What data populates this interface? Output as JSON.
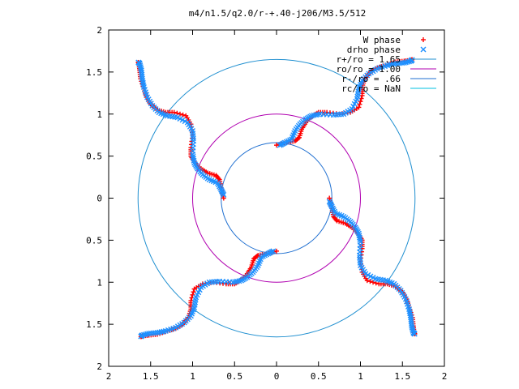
{
  "chart_data": {
    "type": "scatter",
    "title": "m4/n1.5/q2.0/r-+.40-j206/M3.5/512",
    "xlabel": "",
    "ylabel": "",
    "xlim": [
      -2,
      2
    ],
    "ylim": [
      -2,
      2
    ],
    "x_tick_values": [
      -2,
      -1.5,
      -1,
      -0.5,
      0,
      0.5,
      1,
      1.5,
      2
    ],
    "x_tick_labels": [
      "2",
      "1.5",
      "1",
      "0.5",
      "0",
      "0.5",
      "1",
      "1.5",
      "2"
    ],
    "y_tick_values": [
      2,
      1.5,
      1,
      0.5,
      0,
      -0.5,
      -1,
      -1.5,
      -2
    ],
    "y_tick_labels": [
      "2",
      "1.5",
      "1",
      "0.5",
      "0",
      "0.5",
      "1",
      "1.5",
      "2"
    ],
    "grid": false,
    "legend_position": "top-right",
    "arms": 4,
    "series": [
      {
        "name": "W phase",
        "marker": "+",
        "color": "#ff0000",
        "kind": "spiral",
        "points": [
          [
            0.63,
            0.0
          ],
          [
            0.66,
            -0.12
          ],
          [
            0.68,
            -0.22
          ],
          [
            0.72,
            -0.27
          ],
          [
            0.82,
            -0.3
          ],
          [
            0.9,
            -0.35
          ],
          [
            0.98,
            -0.43
          ],
          [
            1.02,
            -0.5
          ],
          [
            1.02,
            -0.6
          ],
          [
            1.0,
            -0.75
          ],
          [
            1.02,
            -0.88
          ],
          [
            1.08,
            -0.98
          ],
          [
            1.22,
            -1.02
          ],
          [
            1.32,
            -1.02
          ],
          [
            1.42,
            -1.05
          ],
          [
            1.5,
            -1.12
          ],
          [
            1.55,
            -1.2
          ],
          [
            1.58,
            -1.3
          ],
          [
            1.62,
            -1.42
          ],
          [
            1.63,
            -1.52
          ],
          [
            1.64,
            -1.6
          ],
          [
            1.65,
            -1.62
          ]
        ]
      },
      {
        "name": "drho phase",
        "marker": "x",
        "color": "#1e90ff",
        "kind": "spiral",
        "points": [
          [
            0.63,
            -0.04
          ],
          [
            0.66,
            -0.1
          ],
          [
            0.7,
            -0.18
          ],
          [
            0.8,
            -0.22
          ],
          [
            0.88,
            -0.28
          ],
          [
            0.94,
            -0.35
          ],
          [
            0.98,
            -0.42
          ],
          [
            1.0,
            -0.52
          ],
          [
            0.99,
            -0.68
          ],
          [
            1.0,
            -0.8
          ],
          [
            1.06,
            -0.9
          ],
          [
            1.18,
            -0.96
          ],
          [
            1.3,
            -0.98
          ],
          [
            1.4,
            -1.02
          ],
          [
            1.48,
            -1.1
          ],
          [
            1.54,
            -1.2
          ],
          [
            1.58,
            -1.32
          ],
          [
            1.6,
            -1.42
          ],
          [
            1.61,
            -1.52
          ],
          [
            1.63,
            -1.6
          ],
          [
            1.65,
            -1.62
          ]
        ]
      },
      {
        "name": "r+/ro = 1.65",
        "marker": "line",
        "color": "#1f8fd0",
        "kind": "circle",
        "radius": 1.65
      },
      {
        "name": "ro/ro = 1.00",
        "marker": "line",
        "color": "#b000b0",
        "kind": "circle",
        "radius": 1.0
      },
      {
        "name": "r-/ro = .66",
        "marker": "line",
        "color": "#1f6fd0",
        "kind": "circle",
        "radius": 0.66
      },
      {
        "name": "rc/ro = NaN",
        "marker": "line",
        "color": "#00c0e0",
        "kind": "circle",
        "radius": null
      }
    ]
  }
}
